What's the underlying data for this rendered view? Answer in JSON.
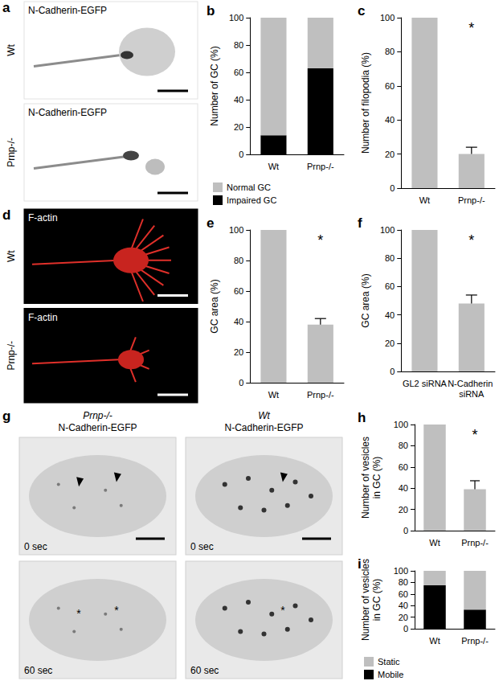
{
  "images": [
    {
      "title": "a",
      "label": "N-Cadherin-EGFP",
      "rows": [
        "Wt",
        "Prnp-/-"
      ]
    },
    {
      "title": "d",
      "label": "F-actin",
      "rows": [
        "Wt",
        "Prnp-/-"
      ]
    },
    {
      "title": "g",
      "columns": [
        {
          "genotype": "Prnp-/-",
          "label": "N-Cadherin-EGFP"
        },
        {
          "genotype": "Wt",
          "label": "N-Cadherin-EGFP"
        }
      ],
      "times": [
        "0 sec",
        "60 sec"
      ],
      "mark": "*"
    }
  ],
  "chart_data": [
    {
      "title": "b",
      "type": "bar",
      "stacked": true,
      "categories": [
        "Wt",
        "Prnp-/-"
      ],
      "series": [
        {
          "name": "Normal GC",
          "color": "#bfbfbf",
          "values": [
            86,
            37
          ]
        },
        {
          "name": "Impaired GC",
          "color": "#000000",
          "values": [
            14,
            63
          ]
        }
      ],
      "y_label": "Number of GC (%)",
      "ylim": [
        0,
        100
      ],
      "yticks": [
        0,
        20,
        40,
        60,
        80,
        100
      ],
      "legend": "bottom"
    },
    {
      "title": "c",
      "type": "bar",
      "categories": [
        "Wt",
        "Prnp-/-"
      ],
      "values": [
        100,
        20
      ],
      "errors": [
        null,
        4
      ],
      "color": "#bfbfbf",
      "y_label": "Number of filopodia (%)",
      "ylim": [
        0,
        100
      ],
      "yticks": [
        0,
        20,
        40,
        60,
        80,
        100
      ],
      "annotations": [
        {
          "text": "*",
          "category": "Prnp-/-"
        }
      ]
    },
    {
      "title": "e",
      "type": "bar",
      "categories": [
        "Wt",
        "Prnp-/-"
      ],
      "values": [
        100,
        38
      ],
      "errors": [
        null,
        4
      ],
      "color": "#bfbfbf",
      "y_label": "GC area (%)",
      "ylim": [
        0,
        100
      ],
      "yticks": [
        0,
        20,
        40,
        60,
        80,
        100
      ],
      "annotations": [
        {
          "text": "*",
          "category": "Prnp-/-"
        }
      ]
    },
    {
      "title": "f",
      "type": "bar",
      "categories": [
        "GL2 siRNA",
        "N-Cadherin siRNA"
      ],
      "values": [
        100,
        48
      ],
      "errors": [
        null,
        6
      ],
      "color": "#bfbfbf",
      "y_label": "GC area (%)",
      "ylim": [
        0,
        100
      ],
      "yticks": [
        0,
        20,
        40,
        60,
        80,
        100
      ],
      "annotations": [
        {
          "text": "*",
          "category": "N-Cadherin siRNA"
        }
      ]
    },
    {
      "title": "h",
      "type": "bar",
      "categories": [
        "Wt",
        "Prnp-/-"
      ],
      "values": [
        100,
        39
      ],
      "errors": [
        null,
        8
      ],
      "color": "#bfbfbf",
      "y_label": "Number of vesicles\nin GC (%)",
      "ylim": [
        0,
        100
      ],
      "yticks": [
        0,
        20,
        40,
        60,
        80,
        100
      ],
      "annotations": [
        {
          "text": "*",
          "category": "Prnp-/-"
        }
      ]
    },
    {
      "title": "i",
      "type": "bar",
      "stacked": true,
      "categories": [
        "Wt",
        "Prnp-/-"
      ],
      "series": [
        {
          "name": "Static",
          "color": "#bfbfbf",
          "values": [
            25,
            67
          ]
        },
        {
          "name": "Mobile",
          "color": "#000000",
          "values": [
            75,
            33
          ]
        }
      ],
      "y_label": "Number of vesicles\nin GC (%)",
      "ylim": [
        0,
        100
      ],
      "yticks": [
        0,
        20,
        40,
        60,
        80,
        100
      ],
      "legend": "bottom"
    }
  ]
}
